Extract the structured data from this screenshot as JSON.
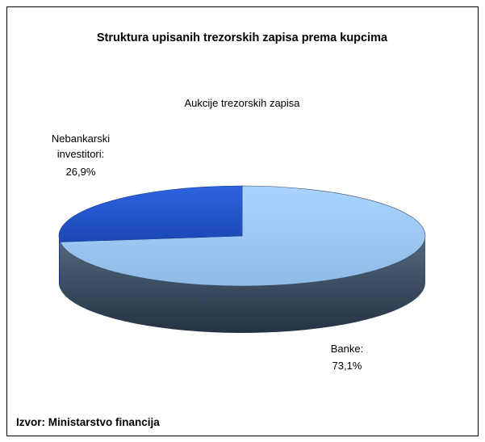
{
  "chart_data": {
    "type": "pie3d",
    "title": "Struktura upisanih trezorskih zapisa prema kupcima",
    "subtitle": "Aukcije trezorskih zapisa",
    "categories": [
      "Banke:",
      "Nebankarski investitori:"
    ],
    "values": [
      73.1,
      26.9
    ],
    "value_labels": [
      "73,1%",
      "26,9%"
    ],
    "colors": [
      "#9ccbf7",
      "#2358d0"
    ],
    "side_colors": [
      "#3a4a60",
      "#1a3f99"
    ],
    "source": "Izvor: Ministarstvo financija"
  }
}
